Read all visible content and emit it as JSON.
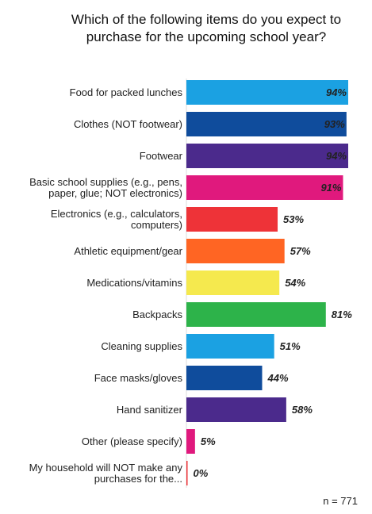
{
  "chart_data": {
    "type": "bar",
    "orientation": "horizontal",
    "title": "Which of the following items do you expect to purchase for the upcoming school year?",
    "categories": [
      [
        "Food for packed lunches"
      ],
      [
        "Clothes (NOT footwear)"
      ],
      [
        "Footwear"
      ],
      [
        "Basic school supplies (e.g., pens,",
        "paper, glue; NOT electronics)"
      ],
      [
        "Electronics (e.g., calculators,",
        "computers)"
      ],
      [
        "Athletic equipment/gear"
      ],
      [
        "Medications/vitamins"
      ],
      [
        "Backpacks"
      ],
      [
        "Cleaning supplies"
      ],
      [
        "Face masks/gloves"
      ],
      [
        "Hand sanitizer"
      ],
      [
        "Other (please specify)"
      ],
      [
        "My household will NOT make any",
        "purchases for the..."
      ]
    ],
    "values": [
      94,
      93,
      94,
      91,
      53,
      57,
      54,
      81,
      51,
      44,
      58,
      5,
      0
    ],
    "value_labels": [
      "94%",
      "93%",
      "94%",
      "91%",
      "53%",
      "57%",
      "54%",
      "81%",
      "51%",
      "44%",
      "58%",
      "5%",
      "0%"
    ],
    "colors": [
      "#1ba1e2",
      "#0f4c9c",
      "#4b2a8c",
      "#e0197d",
      "#ee3338",
      "#ff6523",
      "#f5e94e",
      "#2db34a",
      "#1ba1e2",
      "#0f4c9c",
      "#4b2a8c",
      "#e0197d",
      "#ee3338"
    ],
    "xlim": [
      0,
      94
    ],
    "grid": false,
    "legend": "none"
  },
  "note": "n = 771"
}
